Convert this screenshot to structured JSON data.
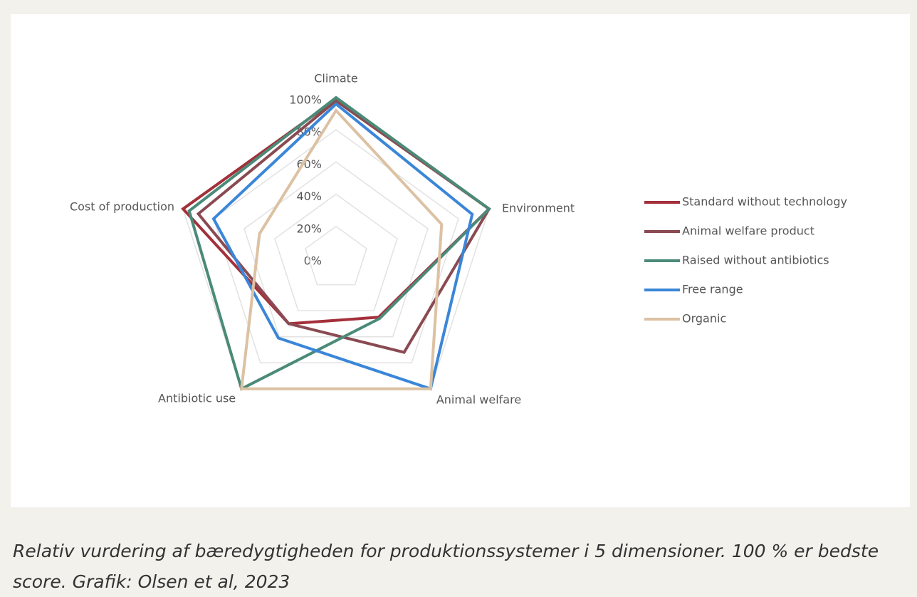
{
  "chart_data": {
    "type": "radar",
    "categories": [
      "Climate",
      "Environment",
      "Animal welfare",
      "Antibiotic use",
      "Cost of production"
    ],
    "series": [
      {
        "name": "Standard without technology",
        "color": "#a3303b",
        "values": [
          99,
          100,
          45,
          50,
          100
        ]
      },
      {
        "name": "Animal welfare product",
        "color": "#8a4a52",
        "values": [
          98,
          100,
          72,
          50,
          90
        ]
      },
      {
        "name": "Raised without antibiotics",
        "color": "#4b8a78",
        "values": [
          100,
          100,
          46,
          100,
          96
        ]
      },
      {
        "name": "Free range",
        "color": "#3a86d8",
        "values": [
          96,
          89,
          100,
          61,
          80
        ]
      },
      {
        "name": "Organic",
        "color": "#dcc1a3",
        "values": [
          92,
          69,
          100,
          100,
          50
        ]
      }
    ],
    "rlim": [
      0,
      100
    ],
    "rticks": [
      {
        "value": 0,
        "label": "0%"
      },
      {
        "value": 20,
        "label": "20%"
      },
      {
        "value": 40,
        "label": "40%"
      },
      {
        "value": 60,
        "label": "60%"
      },
      {
        "value": 80,
        "label": "80%"
      },
      {
        "value": 100,
        "label": "100%"
      }
    ],
    "grid": true,
    "legend": "right",
    "caption": "Relativ vurdering af bæredygtigheden for produktionssystemer i 5 dimensioner.  100 % er bedste score.  Grafik: Olsen et al, 2023"
  }
}
